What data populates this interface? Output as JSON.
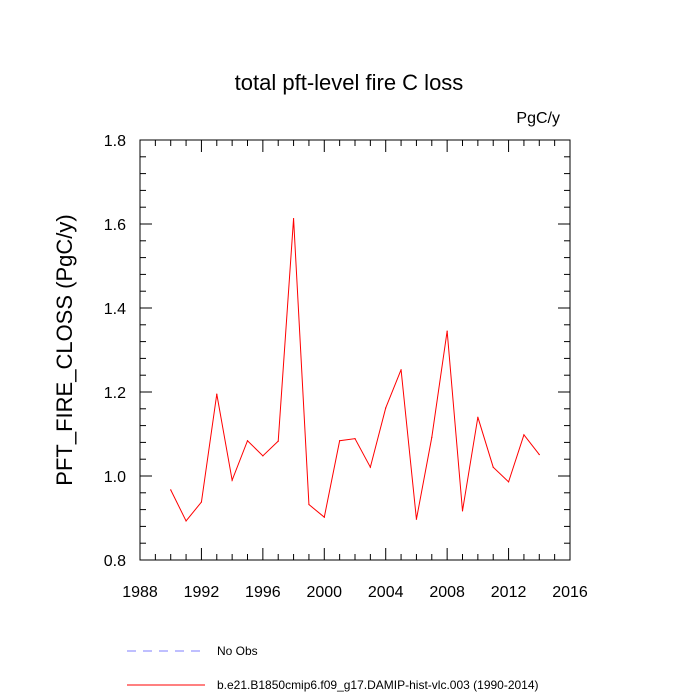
{
  "chart_data": {
    "type": "line",
    "title": "total pft-level fire C loss",
    "units_label": "PgC/y",
    "ylabel": "PFT_FIRE_CLOSS  (PgC/y)",
    "xlabel": "",
    "xlim": [
      1988,
      2016
    ],
    "ylim": [
      0.8,
      1.8
    ],
    "x_major_ticks": [
      1988,
      1992,
      1996,
      2000,
      2004,
      2008,
      2012,
      2016
    ],
    "x_tick_labels": [
      "1988",
      "1992",
      "1996",
      "2000",
      "2004",
      "2008",
      "2012",
      "2016"
    ],
    "y_major_ticks": [
      0.8,
      1.0,
      1.2,
      1.4,
      1.6,
      1.8
    ],
    "y_tick_labels": [
      "0.8",
      "1.0",
      "1.2",
      "1.4",
      "1.6",
      "1.8"
    ],
    "grid": false,
    "series": [
      {
        "name": "b.e21.B1850cmip6.f09_g17.DAMIP-hist-vlc.003 (1990-2014)",
        "color": "#ff0000",
        "dash": "solid",
        "x": [
          1990,
          1991,
          1992,
          1993,
          1994,
          1995,
          1996,
          1997,
          1998,
          1999,
          2000,
          2001,
          2002,
          2003,
          2004,
          2005,
          2006,
          2007,
          2008,
          2009,
          2010,
          2011,
          2012,
          2013,
          2014
        ],
        "values": [
          0.967,
          0.893,
          0.938,
          1.195,
          0.99,
          1.084,
          1.048,
          1.083,
          1.613,
          0.932,
          0.902,
          1.084,
          1.089,
          1.021,
          1.162,
          1.253,
          0.897,
          1.092,
          1.345,
          0.917,
          1.14,
          1.021,
          0.986,
          1.098,
          1.051
        ]
      }
    ],
    "legend": {
      "placement": "bottom-left",
      "entries": [
        {
          "label": "No Obs",
          "color": "#7f7fff",
          "dash": "dashed"
        },
        {
          "label": "b.e21.B1850cmip6.f09_g17.DAMIP-hist-vlc.003 (1990-2014)",
          "color": "#ff0000",
          "dash": "solid"
        }
      ]
    }
  }
}
